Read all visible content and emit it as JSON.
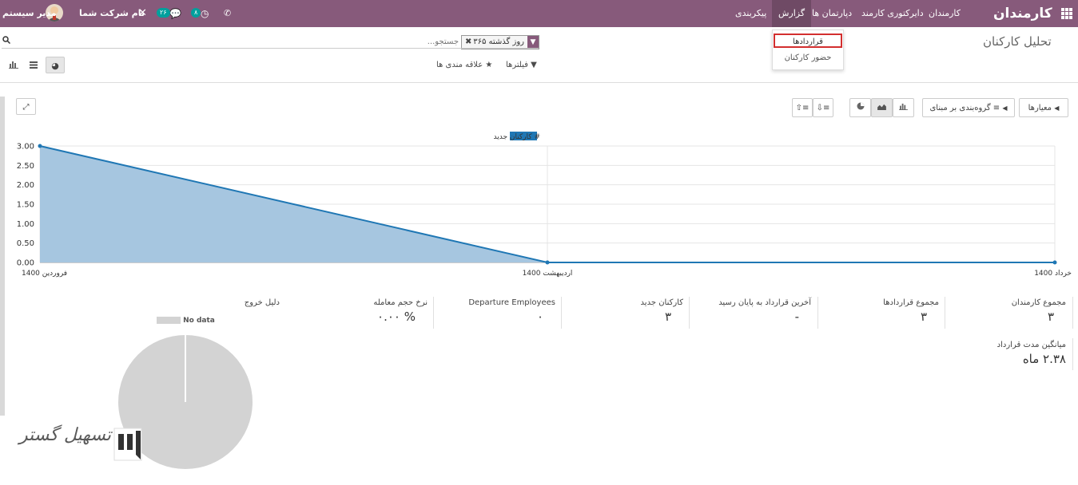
{
  "navbar": {
    "app_title": "کارمندان",
    "menu": [
      "کارمندان",
      "دایرکتوری کارمند",
      "دپارتمان ها",
      "گزارش",
      "پیکربندی"
    ],
    "user_name": "مدیر سیستم",
    "company_name": "نام شرکت شما",
    "messages_count": "۲۶",
    "activities_count": "۸"
  },
  "dropdown": {
    "items": [
      "قراردادها",
      "حضور کارکنان"
    ]
  },
  "page": {
    "title": "تحلیل کارکنان"
  },
  "search": {
    "placeholder": "جستجو...",
    "facet": "روز گذشته ۳۶۵"
  },
  "filters": {
    "filters_label": "فیلترها",
    "favorites_label": "علاقه مندی ها"
  },
  "toolbar": {
    "measures_label": "معیارها",
    "groupby_label": "گروه‌بندی بر مبنای"
  },
  "chart_data": {
    "type": "area",
    "series": [
      {
        "name": "# کارکنان جدید",
        "values": [
          3,
          0,
          0
        ]
      }
    ],
    "categories": [
      "فروردین 1400",
      "اردیبهشت 1400",
      "خرداد 1400"
    ],
    "y_ticks": [
      "0.00",
      "0.50",
      "1.00",
      "1.50",
      "2.00",
      "2.50",
      "3.00"
    ],
    "ylim": [
      0,
      3
    ],
    "grid": true,
    "legend": "top-center",
    "colors": {
      "line": "#1f77b4",
      "fill": "#a6c6e0"
    }
  },
  "kpis": [
    {
      "label": "مجموع کارمندان",
      "value": "۳"
    },
    {
      "label": "مجموع قراردادها",
      "value": "۳"
    },
    {
      "label": "آخرین قرارداد به پایان رسید",
      "value": "-"
    },
    {
      "label": "کارکنان جدید",
      "value": "۳"
    },
    {
      "label": "Departure Employees",
      "value": "۰"
    },
    {
      "label": "نرخ حجم معامله",
      "value": "۰.۰۰ %"
    },
    {
      "label": "دلیل خروج",
      "value": ""
    }
  ],
  "kpi2": {
    "label": "میانگین مدت قرارداد",
    "value": "۲.۳۸ ماه"
  },
  "pie": {
    "legend": "No data",
    "color": "#d3d3d3"
  },
  "watermark": "تسهیل گستر"
}
